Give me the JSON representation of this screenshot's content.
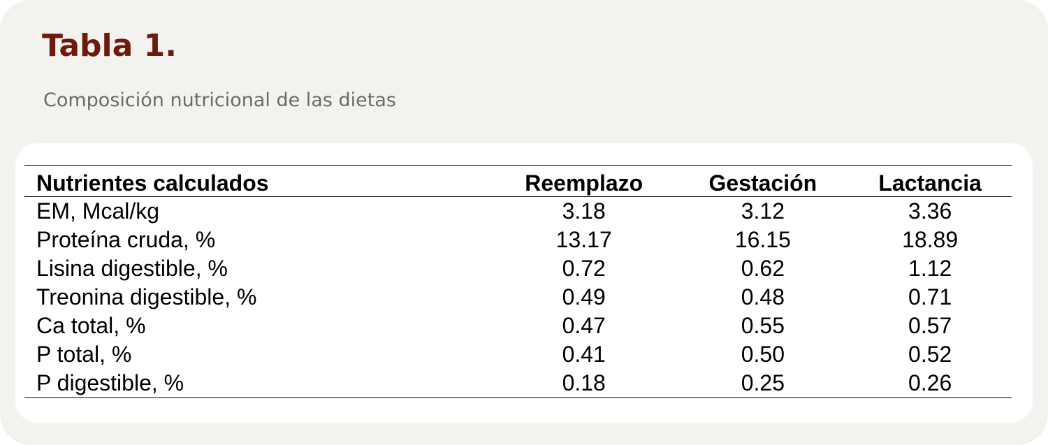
{
  "header": {
    "title": "Tabla 1.",
    "subtitle": "Composición nutricional de las dietas"
  },
  "table": {
    "columns": [
      "Nutrientes calculados",
      "Reemplazo",
      "Gestación",
      "Lactancia"
    ],
    "rows": [
      [
        "EM, Mcal/kg",
        "3.18",
        "3.12",
        "3.36"
      ],
      [
        "Proteína cruda, %",
        "13.17",
        "16.15",
        "18.89"
      ],
      [
        "Lisina digestible, %",
        "0.72",
        "0.62",
        "1.12"
      ],
      [
        "Treonina digestible, %",
        "0.49",
        "0.48",
        "0.71"
      ],
      [
        "Ca total, %",
        "0.47",
        "0.55",
        "0.57"
      ],
      [
        "P total, %",
        "0.41",
        "0.50",
        "0.52"
      ],
      [
        "P digestible, %",
        "0.18",
        "0.25",
        "0.26"
      ]
    ]
  }
}
